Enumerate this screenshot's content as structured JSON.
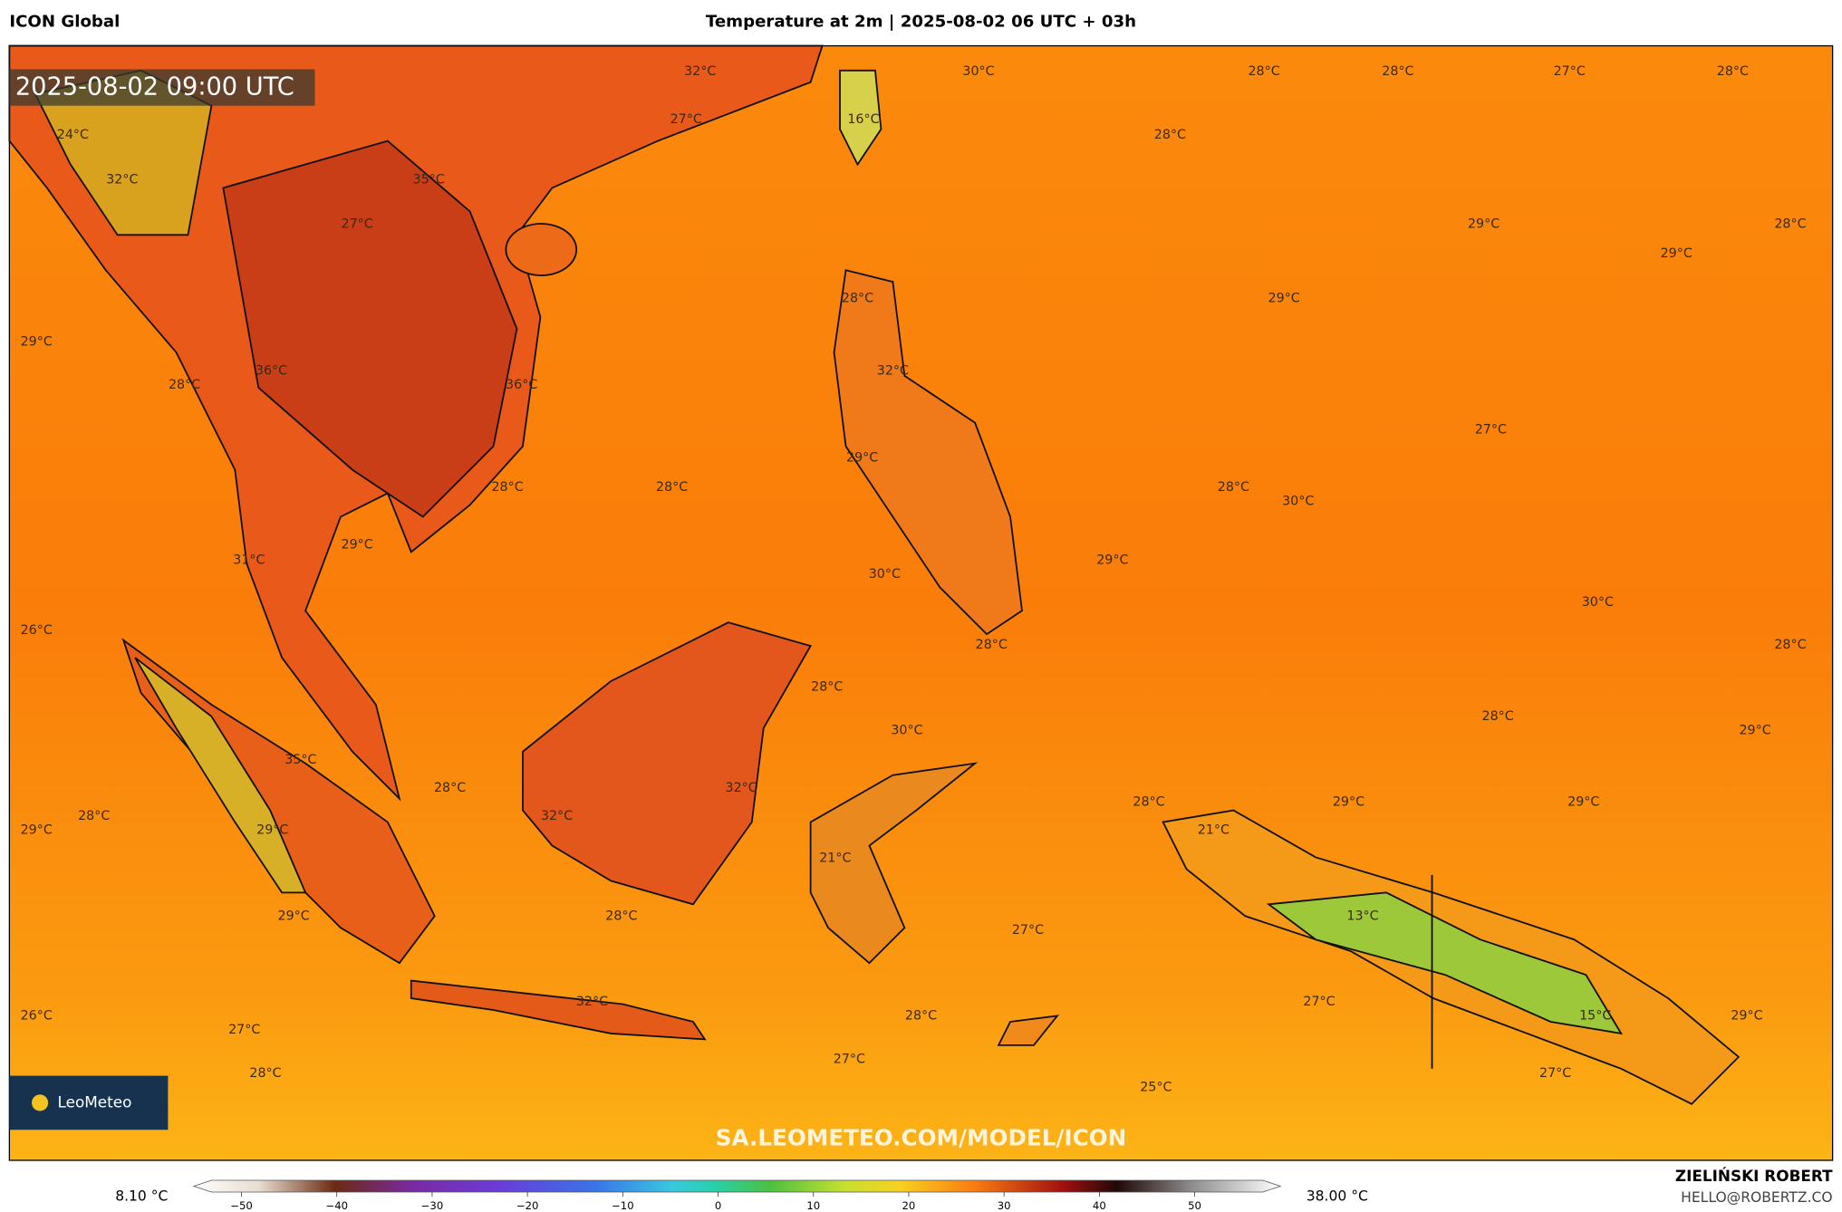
{
  "header": {
    "left": "ICON Global",
    "title": "Temperature at 2m | 2025-08-02 06 UTC + 03h"
  },
  "map": {
    "timestamp": "2025-08-02 09:00 UTC",
    "labels": [
      "32°C",
      "30°C",
      "28°C",
      "28°C",
      "27°C",
      "28°C",
      "24°C",
      "27°C",
      "16°C",
      "28°C",
      "32°C",
      "35°C",
      "27°C",
      "29°C",
      "28°C",
      "29°C",
      "28°C",
      "29°C",
      "29°C",
      "28°C",
      "36°C",
      "32°C",
      "36°C",
      "27°C",
      "29°C",
      "28°C",
      "28°C",
      "28°C",
      "30°C",
      "29°C",
      "31°C",
      "29°C",
      "30°C",
      "30°C",
      "26°C",
      "28°C",
      "28°C",
      "28°C",
      "28°C",
      "30°C",
      "29°C",
      "35°C",
      "28°C",
      "32°C",
      "28°C",
      "32°C",
      "28°C",
      "29°C",
      "29°C",
      "29°C",
      "29°C",
      "21°C",
      "21°C",
      "13°C",
      "29°C",
      "28°C",
      "27°C",
      "32°C",
      "28°C",
      "27°C",
      "15°C",
      "29°C",
      "26°C",
      "27°C",
      "27°C",
      "28°C",
      "27°C",
      "25°C"
    ],
    "watermark": "SA.LEOMETEO.COM/MODEL/ICON",
    "logo": "LeoMeteo"
  },
  "colorbar": {
    "min_label": "8.10 °C",
    "max_label": "38.00 °C",
    "range": [
      -55,
      59
    ],
    "ticks": [
      {
        "value": -50,
        "label": "−50"
      },
      {
        "value": -40,
        "label": "−40"
      },
      {
        "value": -30,
        "label": "−30"
      },
      {
        "value": -20,
        "label": "−20"
      },
      {
        "value": -10,
        "label": "−10"
      },
      0,
      10,
      20,
      30,
      40,
      50
    ]
  },
  "credit": {
    "name": "ZIELIŃSKI ROBERT",
    "email": "HELLO@ROBERTZ.CO"
  }
}
